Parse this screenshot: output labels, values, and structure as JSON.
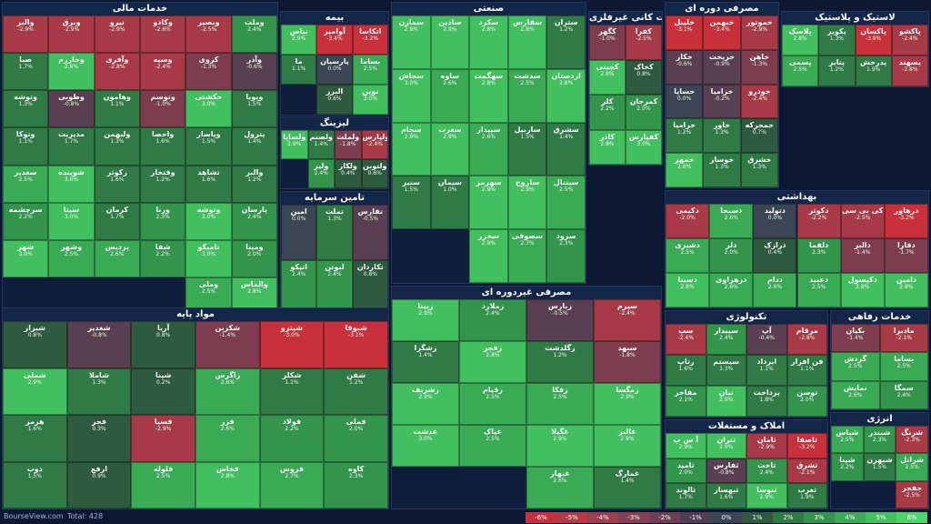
{
  "footer": {
    "brand": "BourseView.com",
    "total": "Total: 428"
  },
  "legend": [
    {
      "label": "-6%",
      "color": "#c8303b"
    },
    {
      "label": "-5%",
      "color": "#b33a46"
    },
    {
      "label": "-4%",
      "color": "#9c3f4d"
    },
    {
      "label": "-3%",
      "color": "#853f50"
    },
    {
      "label": "-2%",
      "color": "#6d3f51"
    },
    {
      "label": "-1%",
      "color": "#4f3e52"
    },
    {
      "label": "0%",
      "color": "#3b4654"
    },
    {
      "label": "1%",
      "color": "#2f5a3e"
    },
    {
      "label": "2%",
      "color": "#2f7a45"
    },
    {
      "label": "3%",
      "color": "#33944c"
    },
    {
      "label": "4%",
      "color": "#3aac56"
    },
    {
      "label": "5%",
      "color": "#42c25f"
    },
    {
      "label": "6%",
      "color": "#4cd66a"
    }
  ],
  "sectors": [
    {
      "title": "خدمات مالی",
      "tiles": [
        {
          "s": "وملت",
          "p": "2.4%"
        },
        {
          "s": "وبصیر",
          "p": "-2.5%"
        },
        {
          "s": "وکادو",
          "p": "-2.6%"
        },
        {
          "s": "نیرو",
          "p": "-2.9%"
        },
        {
          "s": "وبرق",
          "p": "-2.9%"
        },
        {
          "s": "والبر",
          "p": "-2.9%"
        },
        {
          "s": "وآذر",
          "p": "-0.6%"
        },
        {
          "s": "کروی",
          "p": "-1.3%"
        },
        {
          "s": "وسپه",
          "p": "-2.4%"
        },
        {
          "s": "وآفری",
          "p": "-2.8%"
        },
        {
          "s": "وخارزم",
          "p": "2.8%"
        },
        {
          "s": "صبا",
          "p": "1.7%"
        },
        {
          "s": "وپویا",
          "p": "1.5%"
        },
        {
          "s": "حکشتی",
          "p": "3.0%"
        },
        {
          "s": "وتوسم",
          "p": "-1.0%"
        },
        {
          "s": "وهامون",
          "p": "1.1%"
        },
        {
          "s": "وطوبی",
          "p": "-0.8%"
        },
        {
          "s": "وتوشه",
          "p": "1.3%"
        },
        {
          "s": "پترول",
          "p": "1.4%"
        },
        {
          "s": "وپاسار",
          "p": "1.5%"
        },
        {
          "s": "واحصا",
          "p": "1.6%"
        },
        {
          "s": "ولبهمن",
          "p": "1.3%"
        },
        {
          "s": "مدیریت",
          "p": "1.7%"
        },
        {
          "s": "وتوکا",
          "p": "1.1%"
        },
        {
          "s": "والبر",
          "p": "1.2%"
        },
        {
          "s": "تشاهد",
          "p": "1.6%"
        },
        {
          "s": "وفتخار",
          "p": "1.2%"
        },
        {
          "s": "زکوثر",
          "p": "1.6%"
        },
        {
          "s": "شوینده",
          "p": "3.0%"
        },
        {
          "s": "سغدیر",
          "p": "2.5%"
        },
        {
          "s": "پارسان",
          "p": "2.4%"
        },
        {
          "s": "وتوشه",
          "p": "3.0%"
        },
        {
          "s": "ورنا",
          "p": "2.3%"
        },
        {
          "s": "کرمان",
          "p": "1.7%"
        },
        {
          "s": "سیتا",
          "p": "3.0%"
        },
        {
          "s": "سرچشمه",
          "p": "2.2%"
        },
        {
          "s": "ومپنا",
          "p": "2.0%"
        },
        {
          "s": "تامیکو",
          "p": "3.0%"
        },
        {
          "s": "شفا",
          "p": "2.2%"
        },
        {
          "s": "پردیس",
          "p": "2.6%"
        },
        {
          "s": "وشهر",
          "p": "2.5%"
        },
        {
          "s": "شهر",
          "p": "3.0%"
        },
        {
          "s": "والماس",
          "p": "2.8%"
        },
        {
          "s": "وملی",
          "p": "2.5%"
        }
      ]
    },
    {
      "title": "بیمه",
      "tiles": [
        {
          "s": "اتکاسا",
          "p": "-3.2%"
        },
        {
          "s": "آوامیر",
          "p": "-3.4%"
        },
        {
          "s": "بپاس",
          "p": "2.9%"
        },
        {
          "s": "بساما",
          "p": "2.5%"
        },
        {
          "s": "پارسیان",
          "p": "0.0%"
        },
        {
          "s": "ما",
          "p": "1.1%"
        },
        {
          "s": "نوین",
          "p": "3.0%"
        },
        {
          "s": "البرز",
          "p": "0.6%"
        }
      ]
    },
    {
      "title": "لیزینگ",
      "tiles": [
        {
          "s": "ولپارس",
          "p": "-2.4%"
        },
        {
          "s": "ولملت",
          "p": "-1.8%"
        },
        {
          "s": "ولصنم",
          "p": "1.4%"
        },
        {
          "s": "ولساپا",
          "p": "2.9%"
        },
        {
          "s": "ولتوبن",
          "p": "0.6%"
        },
        {
          "s": "ولکار",
          "p": "0.4%"
        },
        {
          "s": "ولیز",
          "p": "2.4%"
        }
      ]
    },
    {
      "title": "تامین سرمایه",
      "tiles": [
        {
          "s": "تفارس",
          "p": "-0.5%"
        },
        {
          "s": "تملت",
          "p": "1.3%"
        },
        {
          "s": "امین",
          "p": "0.0%"
        },
        {
          "s": "تکاردان",
          "p": "0.8%"
        },
        {
          "s": "لبوتن",
          "p": "2.4%"
        },
        {
          "s": "اتیکو",
          "p": "2.4%"
        }
      ]
    },
    {
      "title": "صنعتی",
      "tiles": [
        {
          "s": "ستران",
          "p": "1.2%"
        },
        {
          "s": "سفارس",
          "p": "2.8%"
        },
        {
          "s": "سکرد",
          "p": "2.8%"
        },
        {
          "s": "ساذین",
          "p": "2.9%"
        },
        {
          "s": "سمازن",
          "p": "2.9%"
        },
        {
          "s": "اردستان",
          "p": "2.8%"
        },
        {
          "s": "سدشت",
          "p": "2.5%"
        },
        {
          "s": "سهگمت",
          "p": "2.8%"
        },
        {
          "s": "ساوه",
          "p": "2.6%"
        },
        {
          "s": "سخاش",
          "p": "3.0%"
        },
        {
          "s": "سشرق",
          "p": "1.4%"
        },
        {
          "s": "ساربیل",
          "p": "1.5%"
        },
        {
          "s": "سپیدار",
          "p": "2.6%"
        },
        {
          "s": "سغرب",
          "p": "2.9%"
        },
        {
          "s": "سجام",
          "p": "2.9%"
        },
        {
          "s": "سیتنال",
          "p": "2.5%"
        },
        {
          "s": "ساروج",
          "p": "2.9%"
        },
        {
          "s": "سهرمز",
          "p": "2.9%"
        },
        {
          "s": "سیمان",
          "p": "1.0%"
        },
        {
          "s": "سنیر",
          "p": "1.5%"
        },
        {
          "s": "سرود",
          "p": "2.3%"
        },
        {
          "s": "سصوفی",
          "p": "2.7%"
        },
        {
          "s": "سخزر",
          "p": "2.9%"
        }
      ]
    },
    {
      "title": "سایر محصولات کانی غیرفلزی",
      "tiles": [
        {
          "s": "کفرا",
          "p": "-2.5%"
        },
        {
          "s": "کگهر",
          "p": "-1.0%"
        },
        {
          "s": "کخاک",
          "p": "0.8%"
        },
        {
          "s": "کچینی",
          "p": "2.8%"
        },
        {
          "s": "کمرجان",
          "p": "2.0%"
        },
        {
          "s": "کلر",
          "p": "2.2%"
        },
        {
          "s": "کفپارس",
          "p": "3.0%"
        },
        {
          "s": "کاذر",
          "p": "2.8%"
        }
      ]
    },
    {
      "title": "مصرفی دوره ای",
      "tiles": [
        {
          "s": "خموتور",
          "p": "-2.9%"
        },
        {
          "s": "خبهمن",
          "p": "-3.4%"
        },
        {
          "s": "خلیبل",
          "p": "-3.1%"
        },
        {
          "s": "خاهن",
          "p": "-1.3%"
        },
        {
          "s": "خریخت",
          "p": "-0.9%"
        },
        {
          "s": "خکار",
          "p": "-0.6%"
        },
        {
          "s": "خودرو",
          "p": "-2.4%"
        },
        {
          "s": "خزامیا",
          "p": "-0.2%"
        },
        {
          "s": "خساپا",
          "p": "0.0%"
        },
        {
          "s": "خمحرکه",
          "p": "0.7%"
        },
        {
          "s": "خاور",
          "p": "1.3%"
        },
        {
          "s": "خرامیا",
          "p": "1.2%"
        },
        {
          "s": "خشرق",
          "p": "1.3%"
        },
        {
          "s": "خوساز",
          "p": "1.3%"
        },
        {
          "s": "خمهر",
          "p": "2.8%"
        }
      ]
    },
    {
      "title": "لاستیک و پلاستیک",
      "tiles": [
        {
          "s": "پاکشو",
          "p": "-2.4%"
        },
        {
          "s": "پاکسان",
          "p": "-3.9%"
        },
        {
          "s": "پکویر",
          "p": "1.3%"
        },
        {
          "s": "پلاسک",
          "p": "2.8%"
        },
        {
          "s": "پسهند",
          "p": "-2.8%"
        },
        {
          "s": "پدرخش",
          "p": "1.9%"
        },
        {
          "s": "پتایر",
          "p": "1.2%"
        },
        {
          "s": "پسمی",
          "p": "2.5%"
        }
      ]
    },
    {
      "title": "بهداشتی",
      "tiles": [
        {
          "s": "درهاور",
          "p": "-3.2%"
        },
        {
          "s": "کی بی سی",
          "p": "-2.5%"
        },
        {
          "s": "دکوثر",
          "p": "-2.2%"
        },
        {
          "s": "دتولید",
          "p": "0.0%"
        },
        {
          "s": "دسبحا",
          "p": "2.6%"
        },
        {
          "s": "دکیمی",
          "p": "-2.0%"
        },
        {
          "s": "دفارا",
          "p": "-1.7%"
        },
        {
          "s": "دالبر",
          "p": "-1.4%"
        },
        {
          "s": "دلقما",
          "p": "2.3%"
        },
        {
          "s": "درازک",
          "p": "0.4%"
        },
        {
          "s": "دلر",
          "p": "2.0%"
        },
        {
          "s": "دشیری",
          "p": "2.5%"
        },
        {
          "s": "دامین",
          "p": "2.8%"
        },
        {
          "s": "دکپسول",
          "p": "2.8%"
        },
        {
          "s": "دعبید",
          "p": "2.5%"
        },
        {
          "s": "ددام",
          "p": "2.6%"
        },
        {
          "s": "دزهراوی",
          "p": "2.6%"
        },
        {
          "s": "دسینا",
          "p": "2.8%"
        }
      ]
    },
    {
      "title": "مواد پایه",
      "tiles": [
        {
          "s": "شبوقا",
          "p": "-3.1%"
        },
        {
          "s": "شپترو",
          "p": "-3.0%"
        },
        {
          "s": "شکربن",
          "p": "-1.4%"
        },
        {
          "s": "آریا",
          "p": "0.8%"
        },
        {
          "s": "شغدیر",
          "p": "-0.8%"
        },
        {
          "s": "شیراز",
          "p": "0.8%"
        },
        {
          "s": "شفن",
          "p": "1.2%"
        },
        {
          "s": "شکلر",
          "p": "1.1%"
        },
        {
          "s": "زاگرس",
          "p": "2.6%"
        },
        {
          "s": "شپنا",
          "p": "0.2%"
        },
        {
          "s": "شاملا",
          "p": "1.3%"
        },
        {
          "s": "شملی",
          "p": "2.9%"
        },
        {
          "s": "فملی",
          "p": "2.0%"
        },
        {
          "s": "فولاد",
          "p": "2.2%"
        },
        {
          "s": "فزر",
          "p": "2.6%"
        },
        {
          "s": "فسپا",
          "p": "-2.9%"
        },
        {
          "s": "فجر",
          "p": "0.3%"
        },
        {
          "s": "هرمز",
          "p": "1.6%"
        },
        {
          "s": "کاوه",
          "p": "2.3%"
        },
        {
          "s": "فروس",
          "p": "2.7%"
        },
        {
          "s": "فخاس",
          "p": "2.8%"
        },
        {
          "s": "فلوله",
          "p": "2.5%"
        },
        {
          "s": "ارفع",
          "p": "0.9%"
        },
        {
          "s": "ذوب",
          "p": "1.5%"
        }
      ]
    },
    {
      "title": "مصرفی غیردوره ای",
      "tiles": [
        {
          "s": "سپرم",
          "p": "-2.4%"
        },
        {
          "s": "زبارس",
          "p": "-0.5%"
        },
        {
          "s": "زملارد",
          "p": "2.4%"
        },
        {
          "s": "زپینا",
          "p": "2.9%"
        },
        {
          "s": "سبهد",
          "p": "-1.8%"
        },
        {
          "s": "زگلدشت",
          "p": "1.2%"
        },
        {
          "s": "زفجر",
          "p": "2.8%"
        },
        {
          "s": "زشگزا",
          "p": "1.4%"
        },
        {
          "s": "زمگسا",
          "p": "2.9%"
        },
        {
          "s": "زفکا",
          "p": "2.5%"
        },
        {
          "s": "زقیام",
          "p": "2.5%"
        },
        {
          "s": "زشریف",
          "p": "2.9%"
        },
        {
          "s": "غالبر",
          "p": "2.9%"
        },
        {
          "s": "غگیلا",
          "p": "2.9%"
        },
        {
          "s": "غپاک",
          "p": "2.5%"
        },
        {
          "s": "غدشت",
          "p": "3.0%"
        },
        {
          "s": "غمارگ",
          "p": "1.4%"
        },
        {
          "s": "غبهار",
          "p": "2.6%"
        }
      ]
    },
    {
      "title": "تکنولوژی",
      "tiles": [
        {
          "s": "مرقام",
          "p": "-2.8%"
        },
        {
          "s": "آپ",
          "p": "-0.4%"
        },
        {
          "s": "سپیدار",
          "p": "2.4%"
        },
        {
          "s": "سپ",
          "p": "-2.4%"
        },
        {
          "s": "فن افزار",
          "p": "1.1%"
        },
        {
          "s": "ایرداد",
          "p": "1.1%"
        },
        {
          "s": "سیستم",
          "p": "1.3%"
        },
        {
          "s": "رتاپ",
          "p": "1.6%"
        },
        {
          "s": "توسن",
          "p": "2.0%"
        },
        {
          "s": "پرداخت",
          "p": "1.8%"
        },
        {
          "s": "نیان",
          "p": "2.9%"
        },
        {
          "s": "مفاخر",
          "p": "2.1%"
        }
      ]
    },
    {
      "title": "خدمات رفاهی",
      "tiles": [
        {
          "s": "مادیرا",
          "p": "-2.1%"
        },
        {
          "s": "بکیان",
          "p": "-1.4%"
        },
        {
          "s": "بساما",
          "p": "2.5%"
        },
        {
          "s": "گردش",
          "p": "2.5%"
        },
        {
          "s": "سمگا",
          "p": "2.4%"
        },
        {
          "s": "نمایش",
          "p": "2.6%"
        }
      ]
    },
    {
      "title": "املاک و مستغلات",
      "tiles": [
        {
          "s": "ثاصفا",
          "p": "-3.2%"
        },
        {
          "s": "ثامان",
          "p": "-2.9%"
        },
        {
          "s": "ثتران",
          "p": "2.9%"
        },
        {
          "s": "آ س پ",
          "p": "2.9%"
        },
        {
          "s": "ثشرق",
          "p": "-2.1%"
        },
        {
          "s": "ثاخت",
          "p": "2.4%"
        },
        {
          "s": "ثفارس",
          "p": "-0.8%"
        },
        {
          "s": "ثامید",
          "p": "2.0%"
        },
        {
          "s": "ثغرب",
          "p": "1.9%"
        },
        {
          "s": "ثنوسا",
          "p": "2.9%"
        },
        {
          "s": "ثبهساز",
          "p": "1.6%"
        },
        {
          "s": "ثالوند",
          "p": "1.7%"
        }
      ]
    },
    {
      "title": "انرژی",
      "tiles": [
        {
          "s": "شرنگ",
          "p": "-2.3%"
        },
        {
          "s": "شبندر",
          "p": "2.3%"
        },
        {
          "s": "شپاس",
          "p": "2.5%"
        },
        {
          "s": "شرانل",
          "p": "2.5%"
        },
        {
          "s": "شبهرن",
          "p": "1.5%"
        },
        {
          "s": "شپنا",
          "p": "2.2%"
        },
        {
          "s": "جفجر",
          "p": "-2.5%"
        }
      ]
    }
  ]
}
